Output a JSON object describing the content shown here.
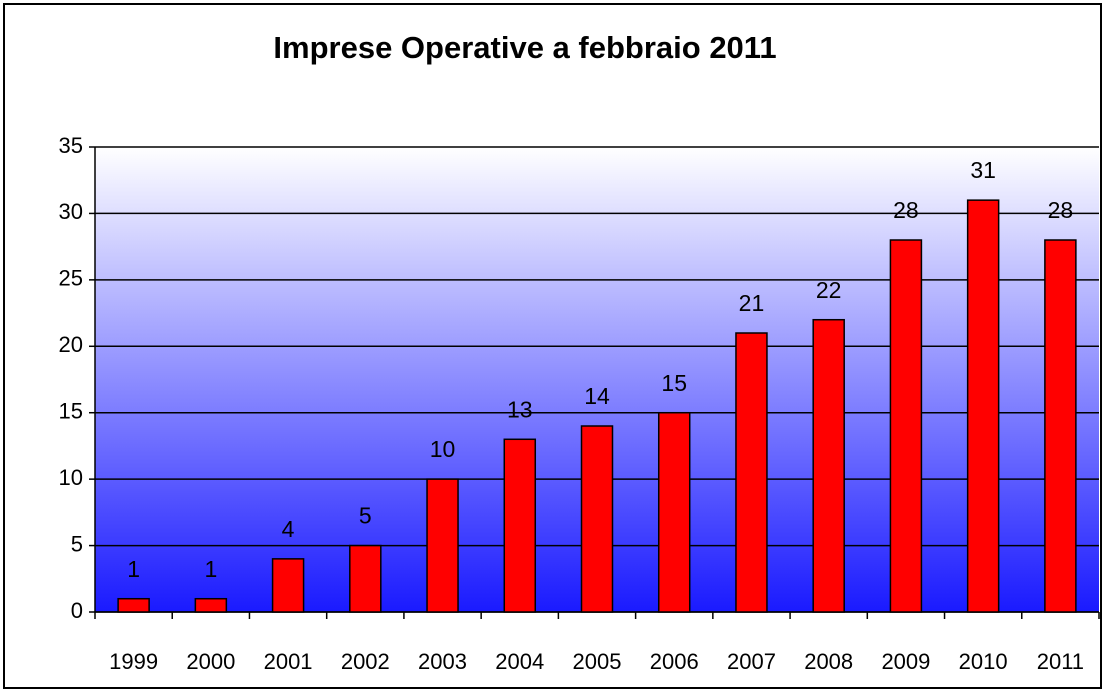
{
  "chart_data": {
    "type": "bar",
    "title": "Imprese Operative a febbraio 2011",
    "categories": [
      "1999",
      "2000",
      "2001",
      "2002",
      "2003",
      "2004",
      "2005",
      "2006",
      "2007",
      "2008",
      "2009",
      "2010",
      "2011"
    ],
    "values": [
      1,
      1,
      4,
      5,
      10,
      13,
      14,
      15,
      21,
      22,
      28,
      31,
      28
    ],
    "color": "#ff0000",
    "ylim": [
      0,
      35
    ],
    "yticks": [
      0,
      5,
      10,
      15,
      20,
      25,
      30,
      35
    ],
    "grid": true
  }
}
